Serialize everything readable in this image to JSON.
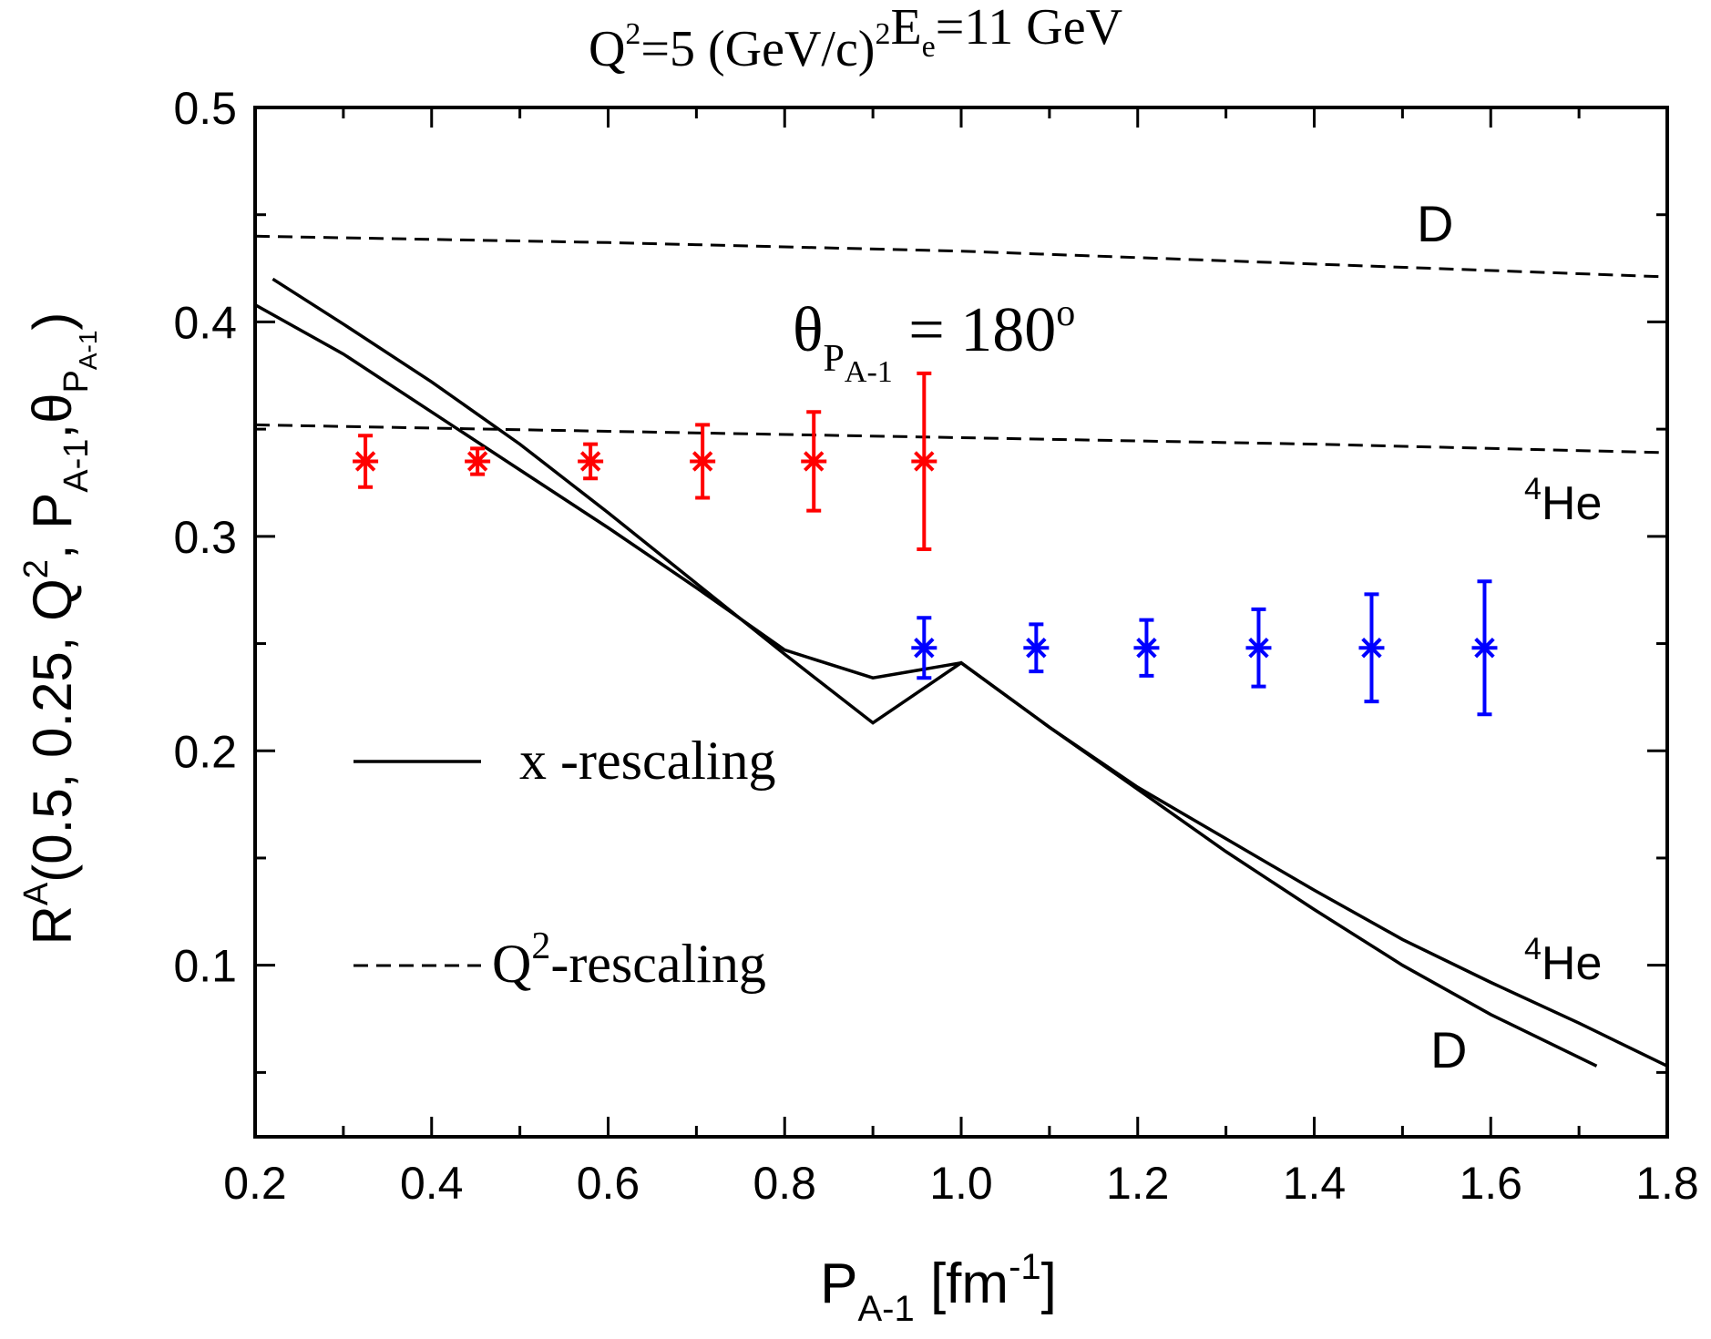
{
  "chart_data": {
    "type": "scatter",
    "title": {
      "q_base": "Q",
      "q_sup": "2",
      "q_rest": "=5 (GeV/c)",
      "unit_sup": "2",
      "e_base": "E",
      "e_sub": "e",
      "e_rest": "=11 GeV"
    },
    "xlabel": {
      "base": "P",
      "sub": "A-1",
      "rest": " [fm",
      "sup": "-1",
      "close": "]"
    },
    "ylabel": {
      "r": "R",
      "r_sup": "A",
      "part1": "(0.5, 0.25, Q",
      "q_sup": "2",
      "part2": ", P",
      "p_sub": "A-1",
      "comma": ",",
      "theta": "θ",
      "theta_sub": "P",
      "theta_subsub": "A-1",
      "close": ")"
    },
    "xlim": [
      0.2,
      1.8
    ],
    "ylim": [
      0.02,
      0.5
    ],
    "xticks": [
      "0.2",
      "0.4",
      "0.6",
      "0.8",
      "1.0",
      "1.2",
      "1.4",
      "1.6",
      "1.8"
    ],
    "yticks": [
      "0.1",
      "0.2",
      "0.3",
      "0.4",
      "0.5"
    ],
    "annotation_angle": {
      "theta": "θ",
      "sub": "P",
      "subsub": "A-1",
      "eq": " = 180",
      "sup": "o"
    },
    "curve_labels": {
      "d_top": "D",
      "he_mid_pre": "4",
      "he_mid": "He",
      "he_low_pre": "4",
      "he_low": "He",
      "d_low": "D"
    },
    "legend": {
      "placement": "lower-left",
      "solid_label": "x -rescaling",
      "dashed_q": "Q",
      "dashed_sup": "2",
      "dashed_rest": "-rescaling"
    },
    "series": [
      {
        "label": "D x-rescaling",
        "style": "solid",
        "color": "#000000",
        "points": [
          [
            0.22,
            0.42
          ],
          [
            0.3,
            0.399
          ],
          [
            0.4,
            0.372
          ],
          [
            0.5,
            0.343
          ],
          [
            0.6,
            0.311
          ],
          [
            0.7,
            0.278
          ],
          [
            0.8,
            0.245
          ],
          [
            0.9,
            0.213
          ],
          [
            1.0,
            0.241
          ],
          [
            1.1,
            0.211
          ],
          [
            1.2,
            0.182
          ],
          [
            1.3,
            0.153
          ],
          [
            1.4,
            0.126
          ],
          [
            1.5,
            0.1
          ],
          [
            1.6,
            0.077
          ],
          [
            1.72,
            0.053
          ]
        ]
      },
      {
        "label": "4He x-rescaling",
        "style": "solid",
        "color": "#000000",
        "points": [
          [
            0.2,
            0.408
          ],
          [
            0.3,
            0.385
          ],
          [
            0.4,
            0.358
          ],
          [
            0.5,
            0.331
          ],
          [
            0.6,
            0.304
          ],
          [
            0.7,
            0.276
          ],
          [
            0.8,
            0.247
          ],
          [
            0.9,
            0.234
          ],
          [
            1.0,
            0.241
          ],
          [
            1.1,
            0.211
          ],
          [
            1.2,
            0.183
          ],
          [
            1.3,
            0.159
          ],
          [
            1.4,
            0.135
          ],
          [
            1.5,
            0.112
          ],
          [
            1.6,
            0.092
          ],
          [
            1.7,
            0.073
          ],
          [
            1.8,
            0.053
          ]
        ]
      },
      {
        "label": "D Q2-rescaling",
        "style": "dashed",
        "color": "#000000",
        "points": [
          [
            0.2,
            0.44
          ],
          [
            0.6,
            0.437
          ],
          [
            1.0,
            0.433
          ],
          [
            1.4,
            0.427
          ],
          [
            1.8,
            0.421
          ]
        ]
      },
      {
        "label": "4He Q2-rescaling",
        "style": "dashed",
        "color": "#000000",
        "points": [
          [
            0.2,
            0.352
          ],
          [
            0.6,
            0.349
          ],
          [
            1.0,
            0.346
          ],
          [
            1.4,
            0.343
          ],
          [
            1.8,
            0.339
          ]
        ]
      }
    ],
    "data_points": [
      {
        "color": "#ff0000",
        "points": [
          {
            "x": 0.325,
            "y": 0.335,
            "err": 0.012
          },
          {
            "x": 0.452,
            "y": 0.335,
            "err": 0.006
          },
          {
            "x": 0.58,
            "y": 0.335,
            "err": 0.008
          },
          {
            "x": 0.707,
            "y": 0.335,
            "err": 0.017
          },
          {
            "x": 0.833,
            "y": 0.335,
            "err": 0.023
          },
          {
            "x": 0.958,
            "y": 0.335,
            "err": 0.041
          }
        ]
      },
      {
        "color": "#0000ff",
        "points": [
          {
            "x": 0.958,
            "y": 0.248,
            "err": 0.014
          },
          {
            "x": 1.085,
            "y": 0.248,
            "err": 0.011
          },
          {
            "x": 1.21,
            "y": 0.248,
            "err": 0.013
          },
          {
            "x": 1.337,
            "y": 0.248,
            "err": 0.018
          },
          {
            "x": 1.465,
            "y": 0.248,
            "err": 0.025
          },
          {
            "x": 1.593,
            "y": 0.248,
            "err": 0.031
          }
        ]
      }
    ]
  }
}
